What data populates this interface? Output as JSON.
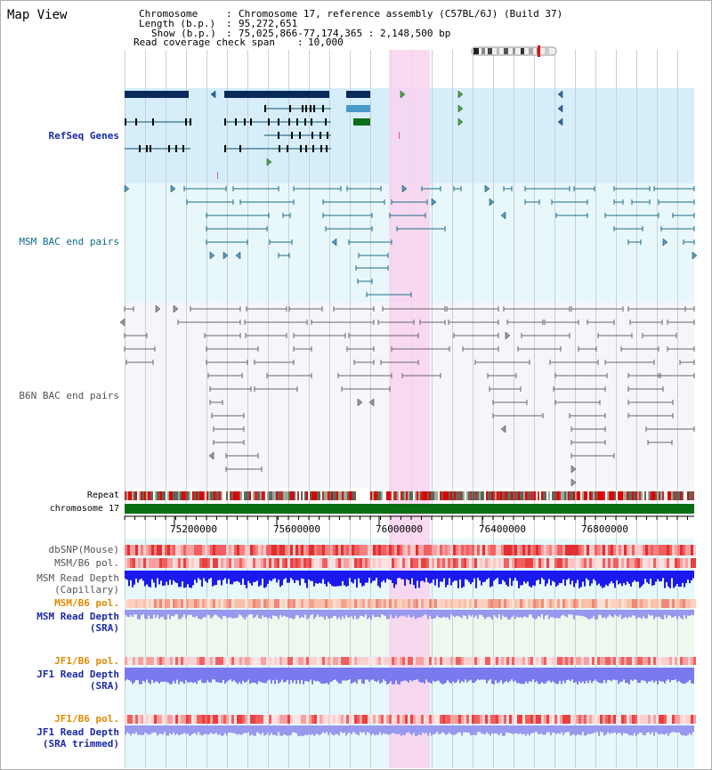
{
  "header": {
    "map_title": "Map View",
    "chromosome_label": "Chromosome",
    "chromosome_value": "Chromosome 17, reference assembly (C57BL/6J) (Build 37)",
    "length_label": "Length (b.p.)",
    "length_value": "95,272,651",
    "show_label": "Show (b.p.)",
    "show_value": "75,025,866-77,174,365 : 2,148,500 bp",
    "coverage_label": "Read coverage check span",
    "coverage_value": "10,000"
  },
  "tracks": {
    "refseq": "RefSeq Genes",
    "msm_bac": "MSM BAC end pairs",
    "b6n_bac": "B6N BAC end pairs",
    "repeat": "Repeat",
    "chromosome": "chromosome 17",
    "dbsnp": "dbSNP(Mouse)",
    "msm_b6_pol": "MSM/B6 pol.",
    "msm_depth_cap_1": "MSM Read Depth",
    "msm_depth_cap_2": "(Capillary)",
    "msm_b6_pol2": "MSM/B6 pol.",
    "msm_depth_sra_1": "MSM Read Depth",
    "msm_depth_sra_2": "(SRA)",
    "jf1_pol": "JF1/B6 pol.",
    "jf1_depth_sra_1": "JF1 Read Depth",
    "jf1_depth_sra_2": "(SRA)",
    "jf1_pol2": "JF1/B6 pol.",
    "jf1_depth_trim_1": "JF1 Read Depth",
    "jf1_depth_trim_2": "(SRA trimmed)"
  },
  "axis": {
    "ticks": [
      "75200000",
      "75600000",
      "76000000",
      "76400000",
      "76800000"
    ]
  },
  "colors": {
    "refseq_bg": "#d6eefa",
    "bac_bg": "#e6f8fa",
    "highlight": "#f8d4ee",
    "gene_dark": "#0a2a5c",
    "gene_mid": "#4a9ac8",
    "gene_green": "#0a6e1a",
    "chromosome_bar": "#0a6e14",
    "depth_blue": "#1a1aee",
    "depth_light": "#8888ee"
  }
}
